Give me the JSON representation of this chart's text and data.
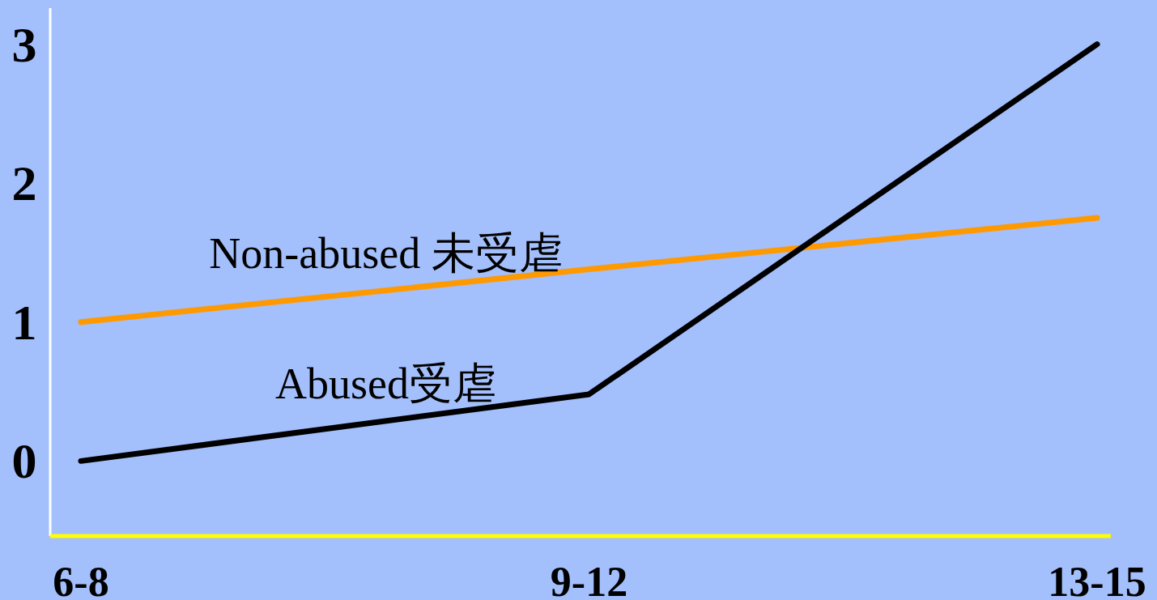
{
  "chart_data": {
    "type": "line",
    "categories": [
      "6-8",
      "9-12",
      "13-15"
    ],
    "series": [
      {
        "name": "Non-abused 未受虐",
        "color": "#ff9900",
        "values": [
          1.0,
          1.38,
          1.75
        ]
      },
      {
        "name": "Abused受虐",
        "color": "#000000",
        "values": [
          0,
          0.48,
          3.0
        ]
      }
    ],
    "ylim": [
      -0.54,
      3.26
    ],
    "yticks": [
      0,
      1,
      2,
      3
    ],
    "grid": false,
    "legend": false,
    "marker": "none",
    "line_style": "solid"
  }
}
